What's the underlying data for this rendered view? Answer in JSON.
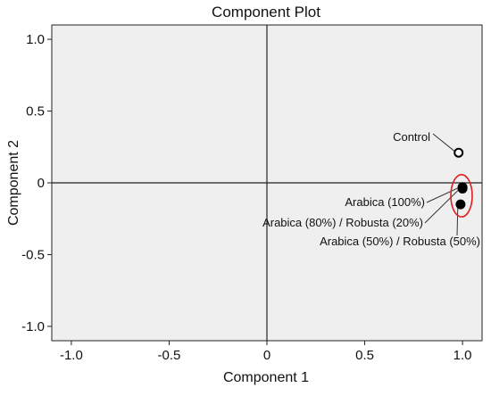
{
  "chart_data": {
    "type": "scatter",
    "title": "Component Plot",
    "xlabel": "Component 1",
    "ylabel": "Component 2",
    "xlim": [
      -1.1,
      1.1
    ],
    "ylim": [
      -1.1,
      1.1
    ],
    "xticks": [
      -1.0,
      -0.5,
      0,
      0.5,
      1.0
    ],
    "xtick_labels": [
      "-1.0",
      "-0.5",
      "0",
      "0.5",
      "1.0"
    ],
    "yticks": [
      -1.0,
      -0.5,
      0,
      0.5,
      1.0
    ],
    "ytick_labels": [
      "-1.0",
      "-0.5",
      "0",
      "0.5",
      "1.0"
    ],
    "grid": false,
    "reference_lines": {
      "x": 0,
      "y": 0
    },
    "points": [
      {
        "label": "Control",
        "x": 0.98,
        "y": 0.21,
        "marker": "open-circle"
      },
      {
        "label": "Arabica (100%)",
        "x": 1.0,
        "y": -0.03,
        "marker": "filled-circle"
      },
      {
        "label": "Arabica (80%) / Robusta (20%)",
        "x": 1.0,
        "y": -0.04,
        "marker": "filled-circle"
      },
      {
        "label": "Arabica (50%) / Robusta (50%)",
        "x": 0.99,
        "y": -0.15,
        "marker": "filled-circle"
      }
    ],
    "highlight": {
      "shape": "ellipse",
      "color": "#e02020",
      "groups": [
        "Arabica (100%)",
        "Arabica (80%) / Robusta (20%)",
        "Arabica (50%) / Robusta (50%)"
      ]
    },
    "colors": {
      "plot_background": "#efefef",
      "marker": "#000000",
      "highlight": "#e02020"
    }
  }
}
